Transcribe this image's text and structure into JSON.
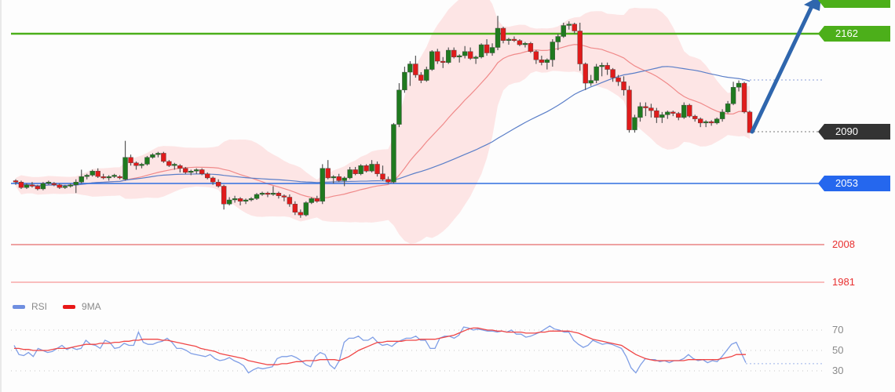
{
  "chart_data": {
    "type": "candlestick",
    "title": "",
    "xlabel": "",
    "ylabel": "",
    "price_axis": {
      "levels": [
        {
          "name": "resistance",
          "value": 2162,
          "color": "#4caf1a",
          "style": "solid-thick",
          "tag": true
        },
        {
          "name": "current-price",
          "value": 2090,
          "color": "#333333",
          "style": "dotted",
          "tag": true
        },
        {
          "name": "support",
          "value": 2053,
          "color": "#2f6fe0",
          "style": "solid",
          "tag": true
        },
        {
          "name": "support-2",
          "value": 2008,
          "color": "#e04848",
          "style": "solid-thin",
          "tag": false
        },
        {
          "name": "support-3",
          "value": 1981,
          "color": "#f5a0a0",
          "style": "solid-thin",
          "tag": false
        }
      ],
      "ylim": [
        1970,
        2186
      ]
    },
    "candles": [
      [
        2055,
        2056,
        2052,
        2054
      ],
      [
        2054,
        2055,
        2049,
        2050
      ],
      [
        2050,
        2053,
        2049,
        2052
      ],
      [
        2052,
        2054,
        2050,
        2051
      ],
      [
        2051,
        2052,
        2048,
        2049
      ],
      [
        2049,
        2054,
        2048,
        2053
      ],
      [
        2053,
        2055,
        2052,
        2054
      ],
      [
        2053,
        2054,
        2051,
        2052
      ],
      [
        2052,
        2053,
        2049,
        2050
      ],
      [
        2050,
        2052,
        2049,
        2051
      ],
      [
        2051,
        2053,
        2050,
        2052
      ],
      [
        2052,
        2056,
        2046,
        2054
      ],
      [
        2054,
        2063,
        2053,
        2058
      ],
      [
        2058,
        2060,
        2056,
        2059
      ],
      [
        2059,
        2063,
        2058,
        2062
      ],
      [
        2062,
        2064,
        2057,
        2058
      ],
      [
        2058,
        2060,
        2056,
        2057
      ],
      [
        2057,
        2059,
        2055,
        2058
      ],
      [
        2058,
        2060,
        2057,
        2059
      ],
      [
        2058,
        2059,
        2056,
        2057
      ],
      [
        2056,
        2084,
        2055,
        2072
      ],
      [
        2072,
        2074,
        2066,
        2068
      ],
      [
        2068,
        2069,
        2063,
        2066
      ],
      [
        2066,
        2068,
        2064,
        2067
      ],
      [
        2067,
        2073,
        2066,
        2072
      ],
      [
        2072,
        2075,
        2071,
        2074
      ],
      [
        2074,
        2076,
        2072,
        2075
      ],
      [
        2075,
        2076,
        2068,
        2069
      ],
      [
        2069,
        2070,
        2065,
        2066
      ],
      [
        2066,
        2068,
        2063,
        2067
      ],
      [
        2066,
        2067,
        2061,
        2064
      ],
      [
        2064,
        2065,
        2060,
        2061
      ],
      [
        2061,
        2063,
        2059,
        2062
      ],
      [
        2062,
        2064,
        2060,
        2063
      ],
      [
        2063,
        2064,
        2059,
        2060
      ],
      [
        2060,
        2061,
        2056,
        2057
      ],
      [
        2057,
        2058,
        2052,
        2054
      ],
      [
        2054,
        2056,
        2050,
        2051
      ],
      [
        2051,
        2052,
        2034,
        2038
      ],
      [
        2038,
        2043,
        2037,
        2041
      ],
      [
        2041,
        2044,
        2039,
        2042
      ],
      [
        2042,
        2043,
        2037,
        2040
      ],
      [
        2040,
        2042,
        2038,
        2041
      ],
      [
        2041,
        2043,
        2040,
        2042
      ],
      [
        2042,
        2046,
        2041,
        2045
      ],
      [
        2045,
        2047,
        2044,
        2046
      ],
      [
        2046,
        2047,
        2043,
        2045
      ],
      [
        2045,
        2051,
        2044,
        2046
      ],
      [
        2046,
        2047,
        2042,
        2044
      ],
      [
        2044,
        2045,
        2040,
        2043
      ],
      [
        2043,
        2045,
        2036,
        2038
      ],
      [
        2038,
        2040,
        2030,
        2032
      ],
      [
        2032,
        2034,
        2028,
        2030
      ],
      [
        2030,
        2040,
        2029,
        2039
      ],
      [
        2039,
        2043,
        2038,
        2042
      ],
      [
        2042,
        2044,
        2039,
        2040
      ],
      [
        2040,
        2067,
        2038,
        2064
      ],
      [
        2064,
        2070,
        2056,
        2057
      ],
      [
        2057,
        2059,
        2053,
        2058
      ],
      [
        2058,
        2060,
        2054,
        2055
      ],
      [
        2055,
        2058,
        2051,
        2057
      ],
      [
        2057,
        2065,
        2056,
        2063
      ],
      [
        2063,
        2065,
        2059,
        2060
      ],
      [
        2060,
        2067,
        2059,
        2066
      ],
      [
        2066,
        2067,
        2061,
        2062
      ],
      [
        2062,
        2070,
        2061,
        2067
      ],
      [
        2067,
        2069,
        2058,
        2060
      ],
      [
        2060,
        2066,
        2055,
        2056
      ],
      [
        2056,
        2058,
        2053,
        2054
      ],
      [
        2054,
        2097,
        2053,
        2096
      ],
      [
        2096,
        2126,
        2094,
        2121
      ],
      [
        2121,
        2138,
        2119,
        2134
      ]
    ],
    "candles_note": "Approximate OHLC [open, high, low, close] read from pixel positions; series continues through peak near 2174 and pullback to close 2090.",
    "candles_tail": [
      [
        2134,
        2142,
        2124,
        2140
      ],
      [
        2140,
        2146,
        2130,
        2132
      ],
      [
        2132,
        2134,
        2126,
        2128
      ],
      [
        2128,
        2138,
        2127,
        2136
      ],
      [
        2136,
        2150,
        2135,
        2149
      ],
      [
        2149,
        2151,
        2140,
        2142
      ],
      [
        2142,
        2145,
        2137,
        2141
      ],
      [
        2141,
        2152,
        2140,
        2150
      ],
      [
        2150,
        2152,
        2144,
        2145
      ],
      [
        2145,
        2147,
        2141,
        2146
      ],
      [
        2146,
        2153,
        2144,
        2149
      ],
      [
        2149,
        2152,
        2143,
        2144
      ],
      [
        2144,
        2146,
        2140,
        2145
      ],
      [
        2145,
        2155,
        2144,
        2154
      ],
      [
        2154,
        2158,
        2146,
        2148
      ],
      [
        2148,
        2155,
        2146,
        2152
      ],
      [
        2152,
        2175,
        2150,
        2166
      ],
      [
        2166,
        2167,
        2155,
        2157
      ],
      [
        2157,
        2159,
        2154,
        2158
      ],
      [
        2158,
        2160,
        2156,
        2157
      ],
      [
        2157,
        2158,
        2153,
        2154
      ],
      [
        2154,
        2156,
        2152,
        2155
      ],
      [
        2155,
        2156,
        2148,
        2149
      ],
      [
        2149,
        2150,
        2140,
        2143
      ],
      [
        2143,
        2146,
        2139,
        2141
      ],
      [
        2141,
        2144,
        2136,
        2143
      ],
      [
        2143,
        2158,
        2138,
        2156
      ],
      [
        2156,
        2162,
        2150,
        2160
      ],
      [
        2160,
        2170,
        2159,
        2168
      ],
      [
        2168,
        2171,
        2165,
        2169
      ],
      [
        2169,
        2170,
        2162,
        2164
      ],
      [
        2164,
        2170,
        2135,
        2140
      ],
      [
        2140,
        2141,
        2121,
        2126
      ],
      [
        2126,
        2132,
        2124,
        2128
      ],
      [
        2128,
        2140,
        2126,
        2138
      ],
      [
        2138,
        2141,
        2131,
        2139
      ],
      [
        2139,
        2141,
        2132,
        2136
      ],
      [
        2136,
        2137,
        2127,
        2130
      ],
      [
        2130,
        2132,
        2124,
        2127
      ],
      [
        2127,
        2131,
        2117,
        2121
      ],
      [
        2121,
        2124,
        2090,
        2092
      ],
      [
        2092,
        2103,
        2090,
        2101
      ],
      [
        2101,
        2112,
        2098,
        2109
      ],
      [
        2109,
        2112,
        2102,
        2108
      ],
      [
        2108,
        2111,
        2101,
        2106
      ],
      [
        2106,
        2108,
        2097,
        2101
      ],
      [
        2101,
        2105,
        2097,
        2103
      ],
      [
        2103,
        2106,
        2100,
        2105
      ],
      [
        2105,
        2106,
        2102,
        2104
      ],
      [
        2104,
        2105,
        2099,
        2101
      ],
      [
        2101,
        2112,
        2100,
        2110
      ],
      [
        2110,
        2111,
        2101,
        2102
      ],
      [
        2102,
        2103,
        2098,
        2100
      ],
      [
        2100,
        2101,
        2094,
        2097
      ],
      [
        2097,
        2099,
        2094,
        2098
      ],
      [
        2098,
        2099,
        2095,
        2097
      ],
      [
        2097,
        2101,
        2096,
        2100
      ],
      [
        2100,
        2107,
        2098,
        2105
      ],
      [
        2105,
        2113,
        2104,
        2111
      ],
      [
        2111,
        2127,
        2110,
        2123
      ],
      [
        2123,
        2128,
        2120,
        2126
      ],
      [
        2126,
        2127,
        2104,
        2105
      ],
      [
        2105,
        2106,
        2090,
        2090
      ]
    ],
    "overlays": [
      {
        "name": "Bollinger Bands",
        "color": "#fde1e1",
        "type": "band"
      },
      {
        "name": "MA (short)",
        "color": "#f08a8a",
        "type": "line"
      },
      {
        "name": "MA (long)",
        "color": "#5a7ec8",
        "type": "line"
      }
    ],
    "annotation": {
      "type": "arrow",
      "direction": "up",
      "color": "#2f66ad",
      "from_price": 2090,
      "to": "above 2186"
    },
    "rsi_panel": {
      "legend": [
        "RSI",
        "9MA"
      ],
      "levels": [
        70,
        50,
        30
      ],
      "rsi": [
        55,
        46,
        45,
        48,
        44,
        52,
        50,
        48,
        49,
        52,
        55,
        51,
        53,
        51,
        52,
        60,
        56,
        55,
        52,
        60,
        58,
        52,
        53,
        57,
        55,
        55,
        68,
        58,
        56,
        56,
        58,
        59,
        62,
        58,
        52,
        52,
        50,
        47,
        46,
        45,
        44,
        46,
        42,
        40,
        41,
        43,
        40,
        38,
        35,
        28,
        31,
        33,
        32,
        33,
        34,
        42,
        44,
        44,
        45,
        43,
        40,
        36,
        34,
        44,
        48,
        46,
        36,
        32,
        40,
        58,
        62,
        62,
        64,
        60,
        60,
        63,
        58,
        55,
        56,
        54,
        58,
        60,
        62,
        62,
        64,
        60,
        60,
        52,
        52,
        62,
        64,
        64,
        62,
        65,
        73,
        72,
        70,
        71,
        70,
        69,
        69,
        68,
        69,
        68,
        70,
        66,
        66,
        63,
        64,
        66,
        68,
        71,
        74,
        71,
        70,
        68,
        68,
        60,
        56,
        53,
        55,
        60,
        58,
        56,
        57,
        56,
        54,
        52,
        44,
        33,
        28,
        36,
        42,
        41,
        41,
        39,
        40,
        38,
        40,
        40,
        42,
        46,
        42,
        40,
        41,
        38,
        40,
        39,
        44,
        50,
        56,
        58,
        48,
        38
      ],
      "ma9": [
        52,
        52,
        51,
        51,
        50,
        50,
        50,
        50,
        51,
        52,
        52,
        52,
        53,
        54,
        55,
        56,
        56,
        56,
        57,
        57,
        57,
        58,
        58,
        59,
        59,
        60,
        60,
        61,
        61,
        61,
        61,
        60,
        60,
        59,
        58,
        57,
        56,
        55,
        54,
        52,
        51,
        50,
        49,
        47,
        46,
        45,
        44,
        43,
        42,
        40,
        39,
        38,
        37,
        36,
        36,
        36,
        37,
        37,
        38,
        39,
        39,
        40,
        40,
        40,
        41,
        41,
        41,
        41,
        40,
        42,
        44,
        47,
        50,
        52,
        54,
        56,
        58,
        58,
        59,
        59,
        59,
        59,
        60,
        60,
        60,
        61,
        61,
        61,
        61,
        62,
        63,
        64,
        65,
        67,
        69,
        71,
        72,
        72,
        71,
        70,
        70,
        69,
        69,
        68,
        68,
        68,
        68,
        67,
        67,
        67,
        68,
        68,
        69,
        69,
        69,
        69,
        69,
        68,
        67,
        65,
        63,
        61,
        60,
        59,
        58,
        57,
        56,
        55,
        52,
        49,
        46,
        44,
        42,
        41,
        40,
        40,
        40,
        40,
        40,
        40,
        40,
        41,
        41,
        41,
        41,
        41,
        41,
        41,
        42,
        43,
        44,
        46,
        46,
        46
      ],
      "last_value_dotted_to": 37
    }
  },
  "labels": {
    "tag_2162": "2162",
    "tag_2090": "2090",
    "tag_2053": "2053",
    "level_2008": "2008",
    "level_1981": "1981",
    "rsi_70": "70",
    "rsi_50": "50",
    "rsi_30": "30",
    "legend_rsi": "RSI",
    "legend_9ma": "9MA"
  },
  "colors": {
    "up_candle": "#1f7a1f",
    "down_candle": "#e01b1b",
    "wick": "#555555",
    "band": "#fde1e1",
    "ma_short": "#f08a8a",
    "ma_long": "#5a7ec8",
    "resistance": "#4caf1a",
    "support": "#2f6fe0",
    "current": "#333333",
    "red_level": "#e04848",
    "red_level_light": "#f8a8a8",
    "rsi_line": "#7f9ee6",
    "rsi_ma": "#f04545",
    "arrow": "#2f66ad"
  }
}
